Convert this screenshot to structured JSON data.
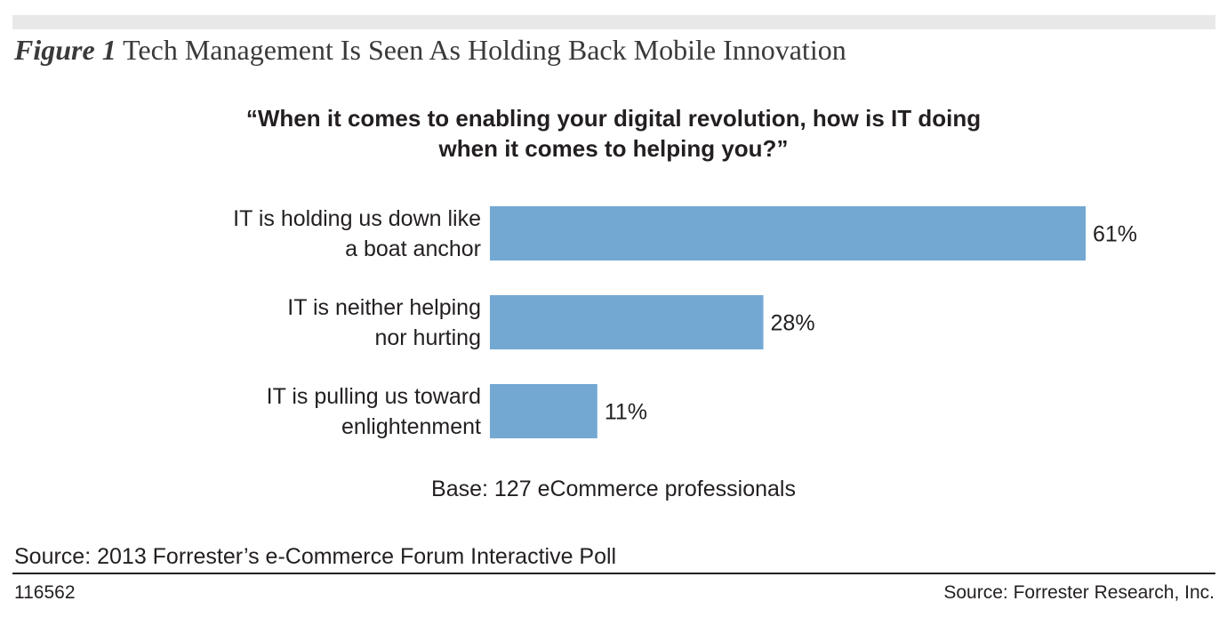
{
  "figure": {
    "label": "Figure 1",
    "title": "Tech Management Is Seen As Holding Back Mobile Innovation"
  },
  "chart_data": {
    "type": "bar",
    "orientation": "horizontal",
    "title_lines": [
      "“When it comes to enabling your digital revolution, how is IT doing",
      "when it comes to helping you?”"
    ],
    "categories": [
      [
        "IT is holding us down like",
        "a boat anchor"
      ],
      [
        "IT is neither helping",
        "nor hurting"
      ],
      [
        "IT is pulling us toward",
        "enlightenment"
      ]
    ],
    "values": [
      61,
      28,
      11
    ],
    "value_labels": [
      "61%",
      "28%",
      "11%"
    ],
    "unit": "%",
    "xlim": [
      0,
      61
    ],
    "bar_color": "#73a8d3",
    "grid": false,
    "legend": "none",
    "base_note": "Base: 127 eCommerce professionals"
  },
  "footer": {
    "source": "Source: 2013 Forrester’s e-Commerce Forum Interactive Poll",
    "figure_id": "116562",
    "credit": "Source: Forrester Research, Inc."
  }
}
